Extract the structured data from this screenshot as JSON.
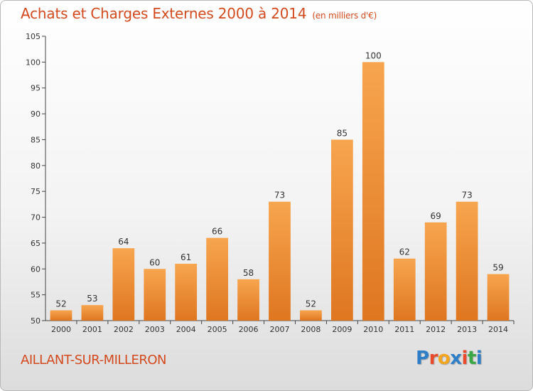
{
  "title": "Achats et Charges Externes 2000 à 2014",
  "unit": "(en milliers d'€)",
  "commune": "AILLANT-SUR-MILLERON",
  "logo_text": "Proxiti",
  "colors": {
    "bar_light": "#f7a54f",
    "bar_dark": "#df7620",
    "title": "#d24a1e",
    "logo": [
      "#2f7fc8",
      "#e84a2b",
      "#f2a51d",
      "#2f7fc8",
      "#e84a2b",
      "#3aa845",
      "#2f7fc8"
    ]
  },
  "chart_data": {
    "type": "bar",
    "title": "Achats et Charges Externes 2000 à 2014",
    "xlabel": "",
    "ylabel": "",
    "categories": [
      "2000",
      "2001",
      "2002",
      "2003",
      "2004",
      "2005",
      "2006",
      "2007",
      "2008",
      "2009",
      "2010",
      "2011",
      "2012",
      "2013",
      "2014"
    ],
    "values": [
      52,
      53,
      64,
      60,
      61,
      66,
      58,
      73,
      52,
      85,
      100,
      62,
      69,
      73,
      59
    ],
    "ylim": [
      50,
      105
    ],
    "yticks": [
      50,
      55,
      60,
      65,
      70,
      75,
      80,
      85,
      90,
      95,
      100,
      105
    ],
    "grid": false,
    "data_labels": true
  }
}
